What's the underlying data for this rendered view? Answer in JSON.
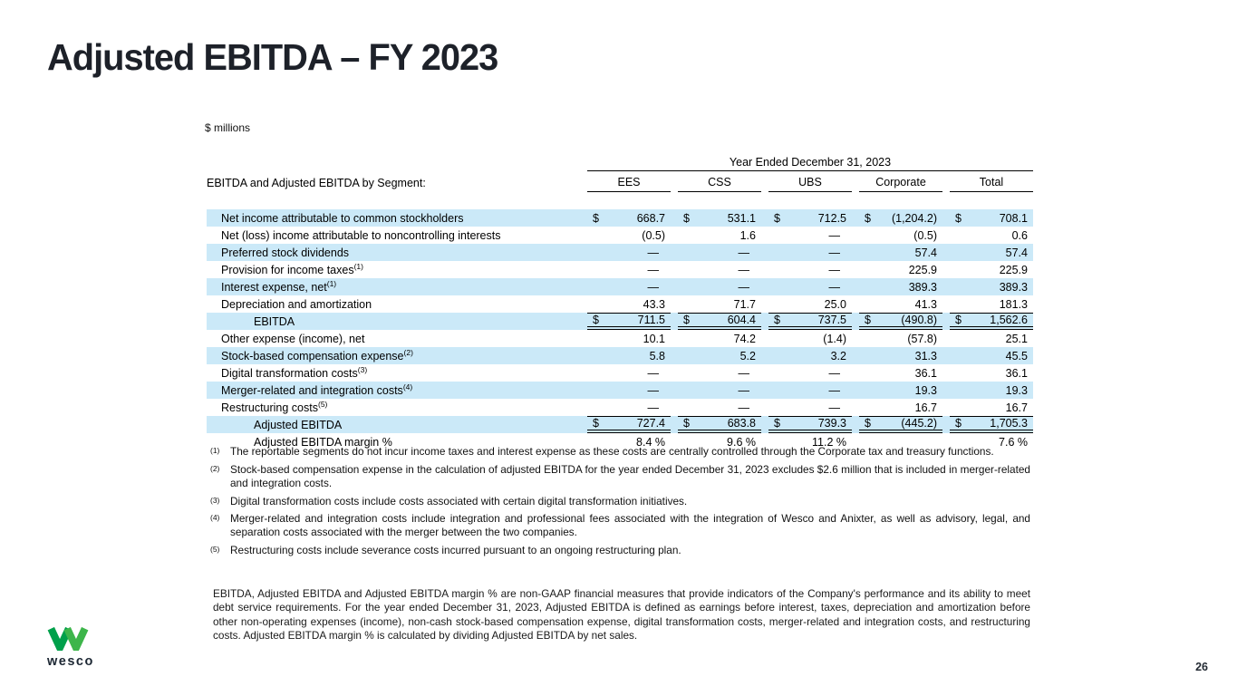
{
  "slide": {
    "title": "Adjusted EBITDA – FY 2023",
    "units_label": "$ millions",
    "page_number": "26",
    "logo_text": "wesco"
  },
  "colors": {
    "highlight_blue": "#cbe9f8",
    "logo_green_dark": "#00a04b",
    "logo_green_light": "#3db54a",
    "title_color": "#1d2129"
  },
  "table": {
    "span_header": "Year Ended December 31, 2023",
    "row_header": "EBITDA and Adjusted EBITDA by Segment:",
    "columns": [
      "EES",
      "CSS",
      "UBS",
      "Corporate",
      "Total"
    ],
    "rows": [
      {
        "label": "Net income attributable to common stockholders",
        "sup": "",
        "indent": false,
        "dollar": true,
        "highlight": true,
        "total": false,
        "values": [
          "668.7",
          "531.1",
          "712.5",
          "(1,204.2)",
          "708.1"
        ]
      },
      {
        "label": "Net (loss) income attributable to noncontrolling interests",
        "sup": "",
        "indent": false,
        "dollar": false,
        "highlight": false,
        "total": false,
        "values": [
          "(0.5)",
          "1.6",
          "—",
          "(0.5)",
          "0.6"
        ]
      },
      {
        "label": "Preferred stock dividends",
        "sup": "",
        "indent": false,
        "dollar": false,
        "highlight": true,
        "total": false,
        "values": [
          "—",
          "—",
          "—",
          "57.4",
          "57.4"
        ]
      },
      {
        "label": "Provision for income taxes",
        "sup": "(1)",
        "indent": false,
        "dollar": false,
        "highlight": false,
        "total": false,
        "values": [
          "—",
          "—",
          "—",
          "225.9",
          "225.9"
        ]
      },
      {
        "label": "Interest expense, net",
        "sup": "(1)",
        "indent": false,
        "dollar": false,
        "highlight": true,
        "total": false,
        "values": [
          "—",
          "—",
          "—",
          "389.3",
          "389.3"
        ]
      },
      {
        "label": "Depreciation and amortization",
        "sup": "",
        "indent": false,
        "dollar": false,
        "highlight": false,
        "total": false,
        "values": [
          "43.3",
          "71.7",
          "25.0",
          "41.3",
          "181.3"
        ]
      },
      {
        "label": "EBITDA",
        "sup": "",
        "indent": true,
        "dollar": true,
        "highlight": true,
        "total": true,
        "values": [
          "711.5",
          "604.4",
          "737.5",
          "(490.8)",
          "1,562.6"
        ]
      },
      {
        "label": "Other expense (income), net",
        "sup": "",
        "indent": false,
        "dollar": false,
        "highlight": false,
        "total": false,
        "values": [
          "10.1",
          "74.2",
          "(1.4)",
          "(57.8)",
          "25.1"
        ]
      },
      {
        "label": "Stock-based compensation expense",
        "sup": "(2)",
        "indent": false,
        "dollar": false,
        "highlight": true,
        "total": false,
        "values": [
          "5.8",
          "5.2",
          "3.2",
          "31.3",
          "45.5"
        ]
      },
      {
        "label": "Digital transformation costs",
        "sup": "(3)",
        "indent": false,
        "dollar": false,
        "highlight": false,
        "total": false,
        "values": [
          "—",
          "—",
          "—",
          "36.1",
          "36.1"
        ]
      },
      {
        "label": "Merger-related and integration costs",
        "sup": "(4)",
        "indent": false,
        "dollar": false,
        "highlight": true,
        "total": false,
        "values": [
          "—",
          "—",
          "—",
          "19.3",
          "19.3"
        ]
      },
      {
        "label": "Restructuring costs",
        "sup": "(5)",
        "indent": false,
        "dollar": false,
        "highlight": false,
        "total": false,
        "values": [
          "—",
          "—",
          "—",
          "16.7",
          "16.7"
        ]
      },
      {
        "label": "Adjusted EBITDA",
        "sup": "",
        "indent": true,
        "dollar": true,
        "highlight": true,
        "total": true,
        "values": [
          "727.4",
          "683.8",
          "739.3",
          "(445.2)",
          "1,705.3"
        ]
      },
      {
        "label": "Adjusted EBITDA margin %",
        "sup": "",
        "indent": true,
        "dollar": false,
        "highlight": false,
        "total": false,
        "values": [
          "8.4 %",
          "9.6 %",
          "11.2 %",
          "",
          "7.6 %"
        ]
      }
    ]
  },
  "footnotes": [
    {
      "marker": "(1)",
      "text": "The reportable segments do not incur income taxes and interest expense as these costs are centrally controlled through the Corporate tax and treasury functions."
    },
    {
      "marker": "(2)",
      "text": "Stock-based compensation expense in the calculation of adjusted EBITDA for the year ended December 31, 2023 excludes $2.6 million that is included in merger-related and integration costs."
    },
    {
      "marker": "(3)",
      "text": "Digital transformation costs include costs associated with certain digital transformation initiatives."
    },
    {
      "marker": "(4)",
      "text": "Merger-related and integration costs include integration and professional fees associated with the integration of Wesco and Anixter, as well as advisory, legal, and separation costs associated with the merger between the two companies."
    },
    {
      "marker": "(5)",
      "text": "Restructuring costs include severance costs incurred pursuant to an ongoing restructuring plan."
    }
  ],
  "disclaimer": "EBITDA, Adjusted EBITDA and Adjusted EBITDA margin % are non-GAAP financial measures that provide indicators of the Company's performance and its ability to meet debt service requirements. For the year ended December 31, 2023, Adjusted EBITDA is defined as earnings before interest, taxes, depreciation and amortization before other non-operating expenses (income), non-cash stock-based compensation expense, digital transformation costs, merger-related and integration costs, and restructuring costs. Adjusted EBITDA margin % is calculated by dividing Adjusted EBITDA by net sales."
}
